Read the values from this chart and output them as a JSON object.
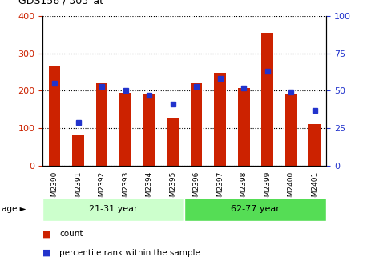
{
  "title": "GDS156 / 303_at",
  "samples": [
    "GSM2390",
    "GSM2391",
    "GSM2392",
    "GSM2393",
    "GSM2394",
    "GSM2395",
    "GSM2396",
    "GSM2397",
    "GSM2398",
    "GSM2399",
    "GSM2400",
    "GSM2401"
  ],
  "counts": [
    265,
    83,
    220,
    195,
    190,
    125,
    220,
    248,
    207,
    355,
    192,
    110
  ],
  "percentiles": [
    55,
    29,
    53,
    50,
    47,
    41,
    53,
    58,
    52,
    63,
    49,
    37
  ],
  "group1_label": "21-31 year",
  "group2_label": "62-77 year",
  "group1_count": 6,
  "group2_count": 6,
  "bar_color": "#cc2200",
  "dot_color": "#2233cc",
  "age_label": "age",
  "group1_bg": "#ccffcc",
  "group2_bg": "#55dd55",
  "ylim_left": [
    0,
    400
  ],
  "ylim_right": [
    0,
    100
  ],
  "yticks_left": [
    0,
    100,
    200,
    300,
    400
  ],
  "yticks_right": [
    0,
    25,
    50,
    75,
    100
  ],
  "legend_count": "count",
  "legend_pct": "percentile rank within the sample",
  "background_color": "#ffffff",
  "tick_label_color_left": "#cc2200",
  "tick_label_color_right": "#2233cc",
  "xtick_bg": "#dddddd"
}
